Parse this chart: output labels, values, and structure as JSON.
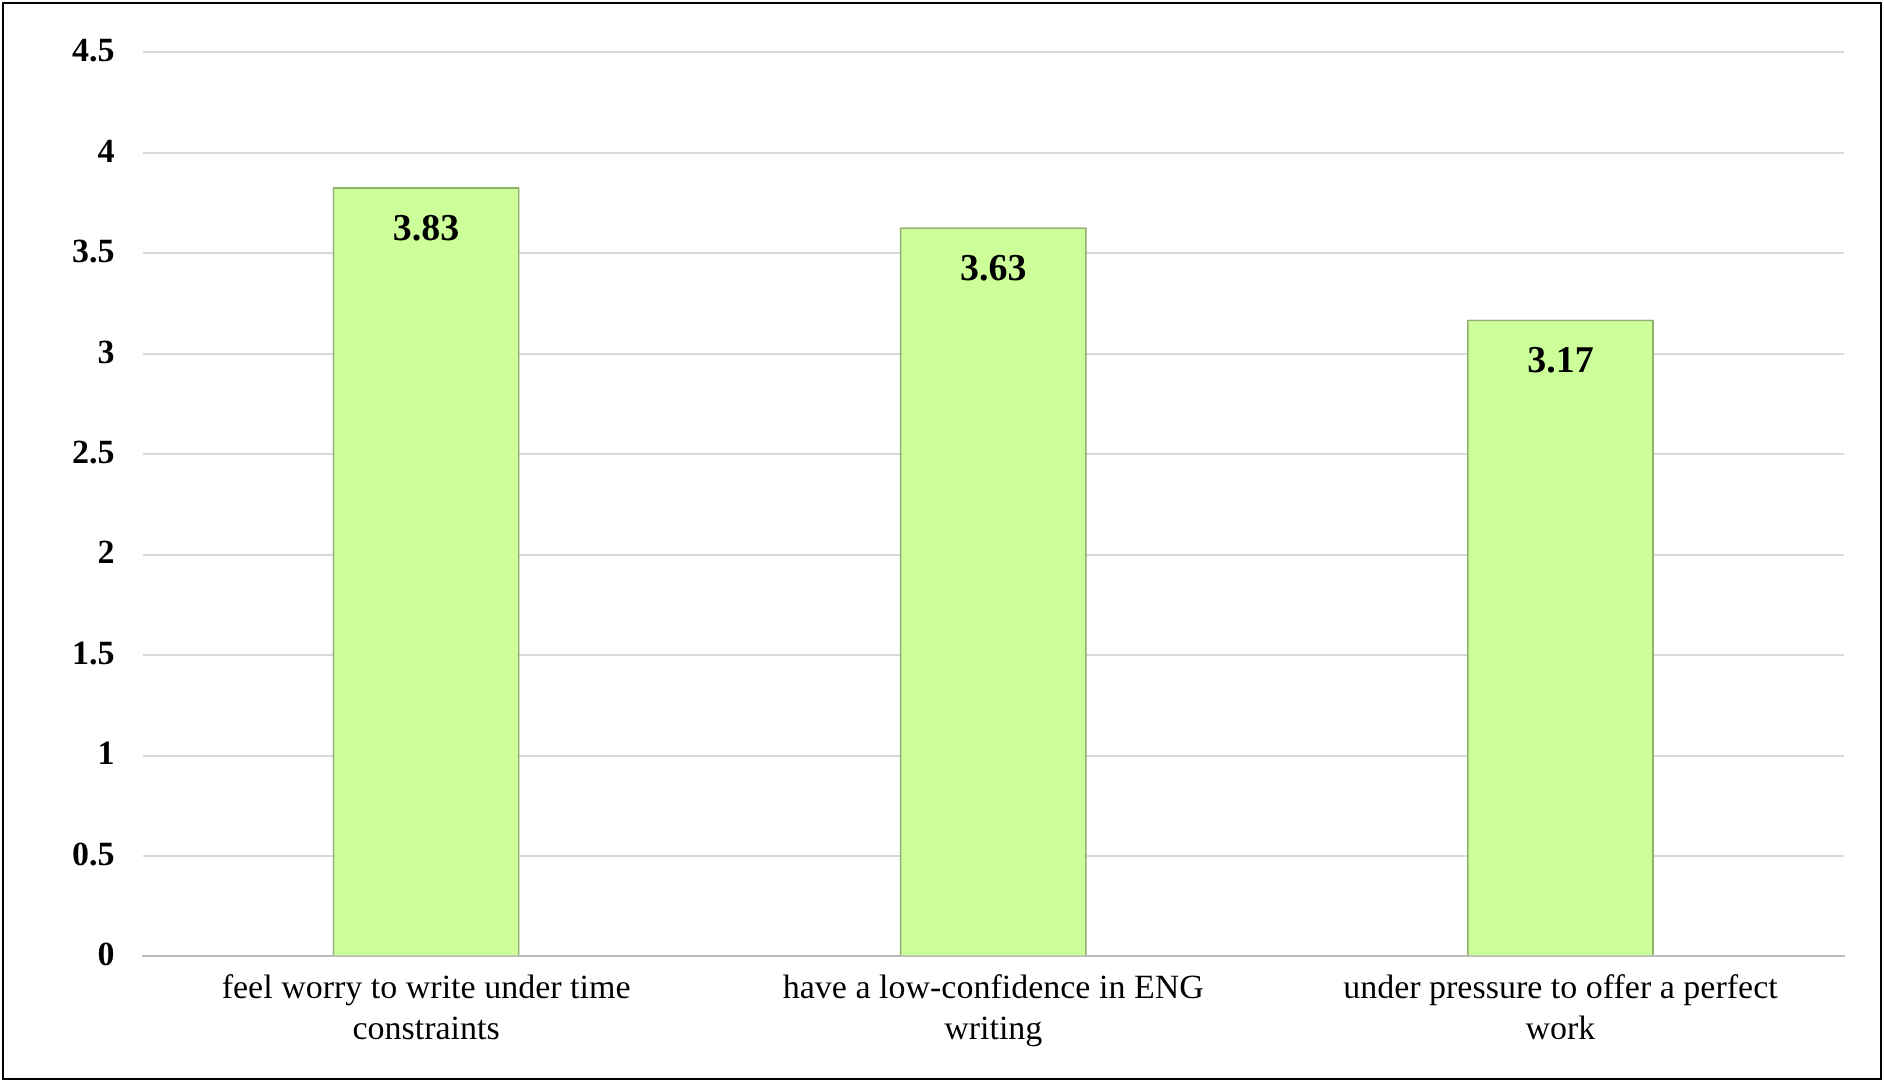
{
  "chart_data": {
    "type": "bar",
    "categories": [
      "feel worry to write under time constraints",
      "have a low-confidence in ENG writing",
      "under pressure to offer a perfect work"
    ],
    "values": [
      3.83,
      3.63,
      3.17
    ],
    "color": "#ccff99",
    "ylim": [
      0,
      4.5
    ],
    "yticks": [
      0,
      0.5,
      1,
      1.5,
      2,
      2.5,
      3,
      3.5,
      4,
      4.5
    ],
    "grid": "y",
    "data_labels": true
  }
}
